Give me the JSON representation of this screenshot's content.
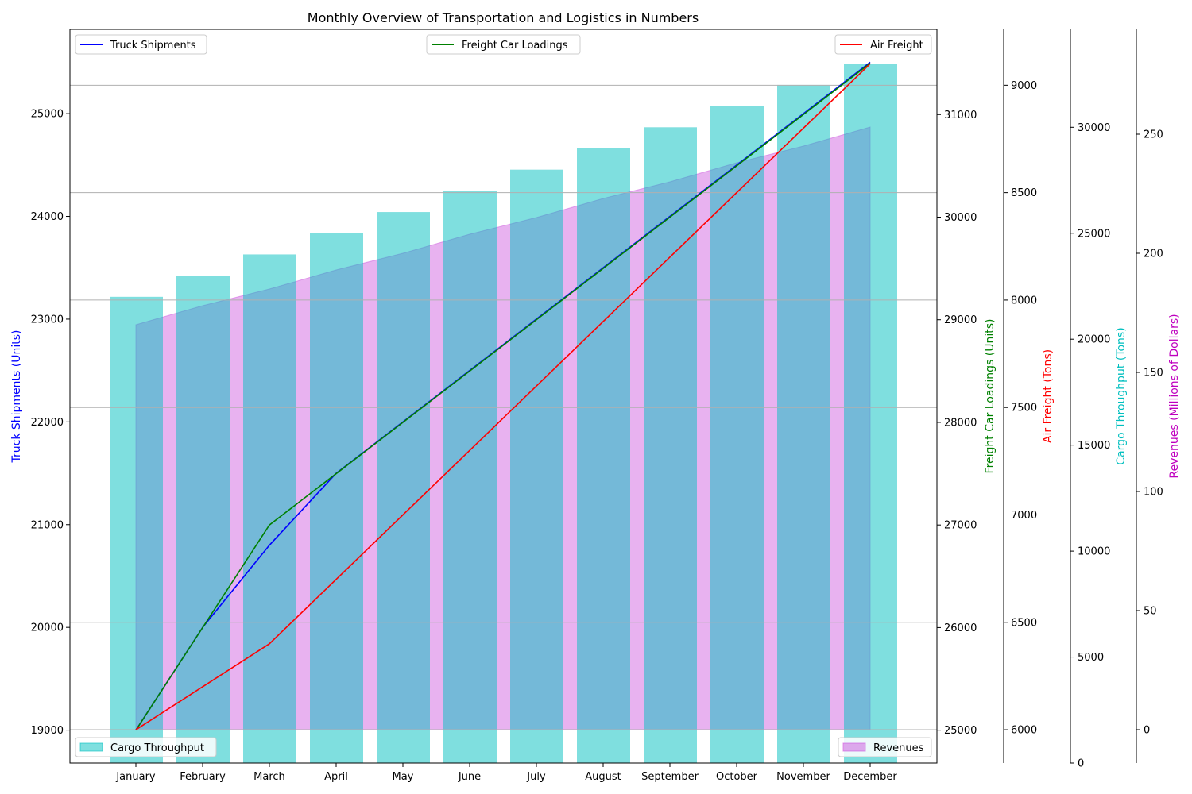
{
  "chart_data": {
    "type": "bar+line",
    "title": "Monthly Overview of Transportation and Logistics in Numbers",
    "categories": [
      "January",
      "February",
      "March",
      "April",
      "May",
      "June",
      "July",
      "August",
      "September",
      "October",
      "November",
      "December"
    ],
    "colors": {
      "truck": "#0000ff",
      "freight": "#008000",
      "air": "#ff0000",
      "cargo": "#00bfbf",
      "revenue": "#cc55dd"
    },
    "axes": {
      "truck": {
        "label": "Truck Shipments (Units)",
        "ylim": [
          18680,
          25820
        ],
        "ticks": [
          19000,
          20000,
          21000,
          22000,
          23000,
          24000,
          25000
        ]
      },
      "freight": {
        "label": "Freight Car Loadings (Units)",
        "ylim": [
          24680,
          31830
        ],
        "ticks": [
          25000,
          26000,
          27000,
          28000,
          29000,
          30000,
          31000
        ]
      },
      "air": {
        "label": "Air Freight (Tons)",
        "ylim": [
          5845,
          9260
        ],
        "ticks": [
          6000,
          6500,
          7000,
          7500,
          8000,
          8500,
          9000
        ]
      },
      "cargo": {
        "label": "Cargo Throughput (Tons)",
        "ylim": [
          0,
          34620
        ],
        "ticks": [
          0,
          5000,
          10000,
          15000,
          20000,
          25000,
          30000
        ]
      },
      "revenue": {
        "label": "Revenues (Millions of Dollars)",
        "ylim": [
          -14,
          294
        ],
        "ticks": [
          0,
          50,
          100,
          150,
          200,
          250
        ]
      }
    },
    "series": [
      {
        "name": "Truck Shipments",
        "axis": "truck",
        "type": "line",
        "values": [
          19000,
          20000,
          20800,
          21500,
          22000,
          22500,
          23000,
          23500,
          24000,
          24500,
          25000,
          25500
        ]
      },
      {
        "name": "Freight Car Loadings",
        "axis": "freight",
        "type": "line",
        "values": [
          25000,
          26000,
          27000,
          27500,
          28000,
          28500,
          29000,
          29500,
          30000,
          30500,
          31000,
          31500
        ]
      },
      {
        "name": "Air Freight",
        "axis": "air",
        "type": "line",
        "values": [
          6000,
          6200,
          6400,
          6700,
          7000,
          7300,
          7600,
          7900,
          8200,
          8500,
          8800,
          9100
        ]
      },
      {
        "name": "Cargo Throughput",
        "axis": "cargo",
        "type": "bar",
        "values": [
          22000,
          23000,
          24000,
          25000,
          26000,
          27000,
          28000,
          29000,
          30000,
          31000,
          32000,
          33000
        ]
      },
      {
        "name": "Revenues",
        "axis": "revenue",
        "type": "area",
        "values": [
          170,
          178,
          185,
          193,
          200,
          208,
          215,
          223,
          230,
          238,
          245,
          253
        ]
      }
    ],
    "legends": {
      "top_left": "Truck Shipments",
      "top_center": "Freight Car Loadings",
      "top_right": "Air Freight",
      "bottom_left": "Cargo Throughput",
      "bottom_right": "Revenues"
    }
  }
}
